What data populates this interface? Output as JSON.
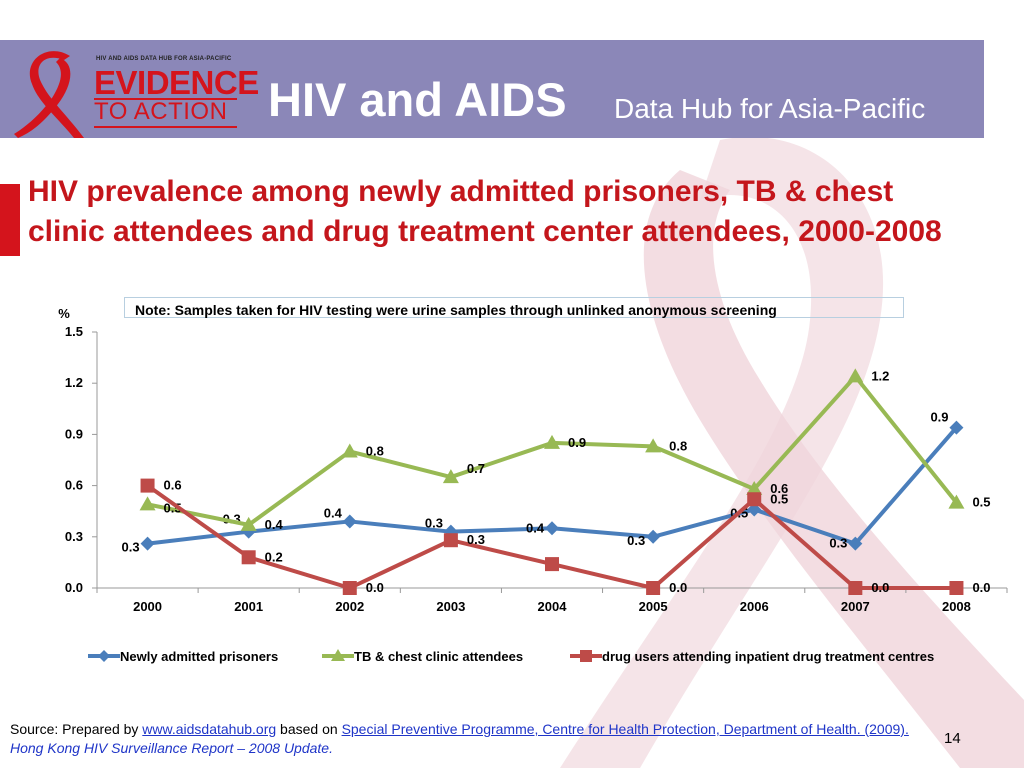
{
  "header": {
    "logo_small": "HIV AND AIDS DATA HUB FOR ASIA-PACIFIC",
    "logo_evidence": "EVIDENCE",
    "logo_toaction": "TO ACTION",
    "title": "HIV and AIDS",
    "subtitle": "Data Hub for Asia-Pacific"
  },
  "slide_title": "HIV prevalence among newly admitted prisoners, TB & chest clinic attendees and drug treatment center attendees, 2000-2008",
  "note": "Note: Samples taken for HIV testing were urine samples through unlinked anonymous screening",
  "chart_data": {
    "type": "line",
    "title": "",
    "xlabel": "",
    "ylabel": "%",
    "ylim": [
      0,
      1.5
    ],
    "yticks": [
      "0.0",
      "0.3",
      "0.6",
      "0.9",
      "1.2",
      "1.5"
    ],
    "categories": [
      "2000",
      "2001",
      "2002",
      "2003",
      "2004",
      "2005",
      "2006",
      "2007",
      "2008"
    ],
    "grid": false,
    "legend_position": "bottom",
    "series": [
      {
        "name": "Newly admitted prisoners",
        "color": "#4a7ebb",
        "marker": "diamond",
        "values": [
          0.26,
          0.33,
          0.39,
          0.33,
          0.35,
          0.3,
          0.46,
          0.26,
          0.94
        ],
        "labels": [
          "0.3",
          "0.3",
          "0.4",
          "0.3",
          "0.4",
          "0.3",
          "0.5",
          "0.3",
          "0.9"
        ]
      },
      {
        "name": "TB & chest clinic attendees",
        "color": "#98b954",
        "marker": "triangle",
        "values": [
          0.49,
          0.37,
          0.8,
          0.65,
          0.85,
          0.83,
          0.58,
          1.24,
          0.5
        ],
        "labels": [
          "0.5",
          "0.4",
          "0.8",
          "0.7",
          "0.9",
          "0.8",
          "0.6",
          "1.2",
          "0.5"
        ]
      },
      {
        "name": "drug users attending inpatient drug treatment centres",
        "color": "#be4b48",
        "marker": "square",
        "values": [
          0.6,
          0.18,
          0.0,
          0.28,
          0.14,
          0.0,
          0.52,
          0.0,
          0.0
        ],
        "labels": [
          "0.6",
          "0.2",
          "0.0",
          "0.3",
          "",
          "0.0",
          "0.5",
          "0.0",
          "0.0"
        ]
      }
    ]
  },
  "source": {
    "prefix": "Source: Prepared by ",
    "link1": "www.aidsdatahub.org",
    "mid": "  based on ",
    "link2": "Special Preventive Programme, Centre for Health Protection, Department of Health. (2009). ",
    "report": "Hong Kong HIV Surveillance Report – 2008 Update."
  },
  "page_number": "14"
}
